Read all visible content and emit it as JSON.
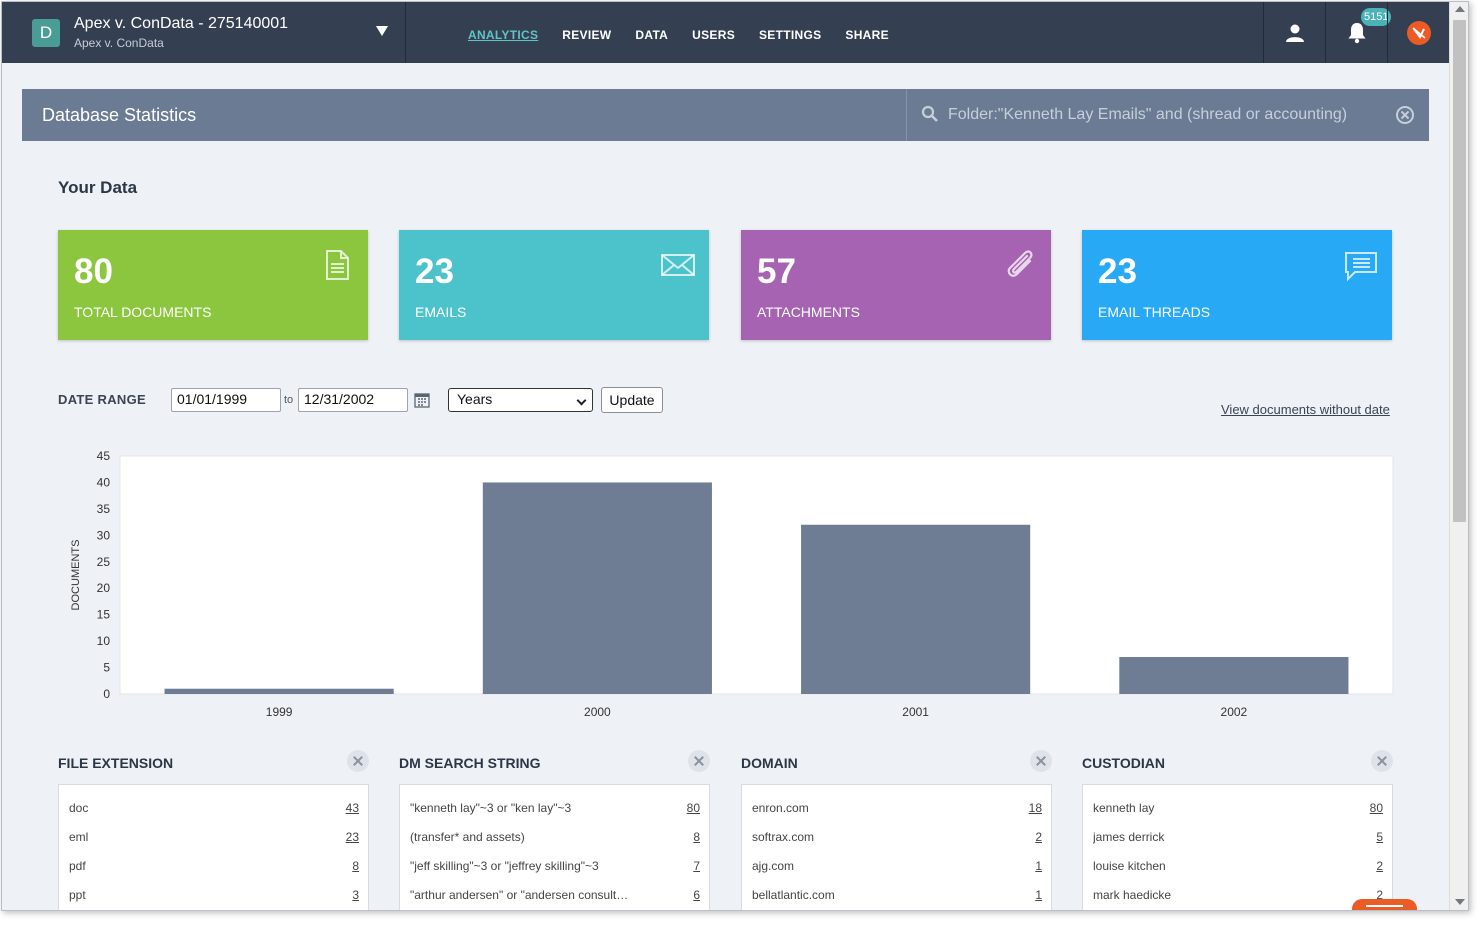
{
  "matter": {
    "badge": "D",
    "title": "Apex v. ConData - 275140001",
    "subtitle": "Apex v. ConData"
  },
  "nav": {
    "items": [
      "ANALYTICS",
      "REVIEW",
      "DATA",
      "USERS",
      "SETTINGS",
      "SHARE"
    ],
    "active": "ANALYTICS"
  },
  "notifications": {
    "count": "5151"
  },
  "panel": {
    "title": "Database Statistics"
  },
  "search": {
    "query": "Folder:\"Kenneth Lay Emails\" and (shread or accounting)"
  },
  "your_data": {
    "title": "Your Data",
    "cards": [
      {
        "value": "80",
        "label": "TOTAL DOCUMENTS",
        "color": "#8cc63f",
        "icon": "document-icon"
      },
      {
        "value": "23",
        "label": "EMAILS",
        "color": "#4cc2cb",
        "icon": "envelope-icon"
      },
      {
        "value": "57",
        "label": "ATTACHMENTS",
        "color": "#a563b1",
        "icon": "paperclip-icon"
      },
      {
        "value": "23",
        "label": "EMAIL THREADS",
        "color": "#28a9f5",
        "icon": "chat-icon"
      }
    ]
  },
  "date_range": {
    "label": "DATE RANGE",
    "from": "01/01/1999",
    "to_label": "to",
    "to": "12/31/2002",
    "granularity": "Years",
    "update_label": "Update",
    "no_date_link": "View documents without date"
  },
  "chart_data": {
    "type": "bar",
    "categories": [
      "1999",
      "2000",
      "2001",
      "2002"
    ],
    "values": [
      1,
      40,
      32,
      7
    ],
    "title": "",
    "xlabel": "",
    "ylabel": "DOCUMENTS",
    "ylim": [
      0,
      45
    ],
    "yticks": [
      0,
      5,
      10,
      15,
      20,
      25,
      30,
      35,
      40,
      45
    ],
    "bar_color": "#6e7d94",
    "grid": false
  },
  "widgets": [
    {
      "title": "FILE EXTENSION",
      "rows": [
        {
          "name": "doc",
          "count": "43"
        },
        {
          "name": "eml",
          "count": "23"
        },
        {
          "name": "pdf",
          "count": "8"
        },
        {
          "name": "ppt",
          "count": "3"
        }
      ]
    },
    {
      "title": "DM SEARCH STRING",
      "rows": [
        {
          "name": "\"kenneth lay\"~3 or \"ken lay\"~3",
          "count": "80"
        },
        {
          "name": "(transfer* and assets)",
          "count": "8"
        },
        {
          "name": "\"jeff skilling\"~3 or \"jeffrey skilling\"~3",
          "count": "7"
        },
        {
          "name": "\"arthur andersen\" or \"andersen consult…",
          "count": "6"
        }
      ]
    },
    {
      "title": "DOMAIN",
      "rows": [
        {
          "name": "enron.com",
          "count": "18"
        },
        {
          "name": "softrax.com",
          "count": "2"
        },
        {
          "name": "ajg.com",
          "count": "1"
        },
        {
          "name": "bellatlantic.com",
          "count": "1"
        }
      ]
    },
    {
      "title": "CUSTODIAN",
      "rows": [
        {
          "name": "kenneth lay",
          "count": "80"
        },
        {
          "name": "james derrick",
          "count": "5"
        },
        {
          "name": "louise kitchen",
          "count": "2"
        },
        {
          "name": "mark haedicke",
          "count": "2"
        }
      ]
    }
  ]
}
